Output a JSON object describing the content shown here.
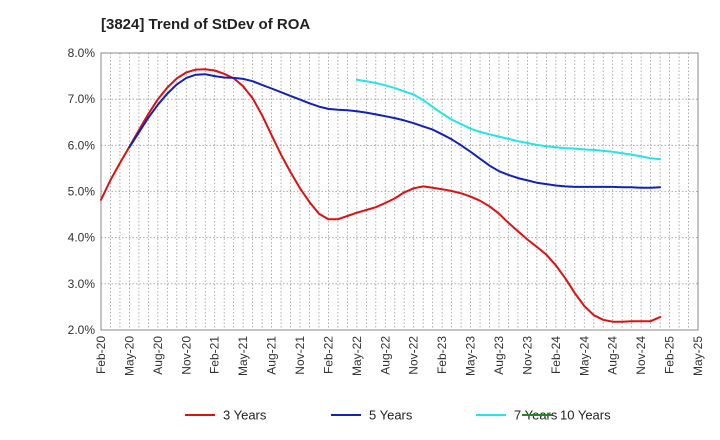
{
  "chart_data": {
    "type": "line",
    "title": "[3824]  Trend of StDev of ROA",
    "xlabel": "",
    "ylabel": "",
    "ylim": [
      2.0,
      8.0
    ],
    "x_ticks": [
      "Feb-20",
      "May-20",
      "Aug-20",
      "Nov-20",
      "Feb-21",
      "May-21",
      "Aug-21",
      "Nov-21",
      "Feb-22",
      "May-22",
      "Aug-22",
      "Nov-22",
      "Feb-23",
      "May-23",
      "Aug-23",
      "Nov-23",
      "Feb-24",
      "May-24",
      "Aug-24",
      "Nov-24",
      "Feb-25",
      "May-25"
    ],
    "y_ticks": [
      "2.0%",
      "3.0%",
      "4.0%",
      "5.0%",
      "6.0%",
      "7.0%",
      "8.0%"
    ],
    "y_tick_values": [
      2.0,
      3.0,
      4.0,
      5.0,
      6.0,
      7.0,
      8.0
    ],
    "grid": true,
    "legend_position": "bottom",
    "series": [
      {
        "name": "3 Years",
        "color": "#dd1111",
        "points": [
          [
            "Feb-20",
            4.82
          ],
          [
            "Mar-20",
            5.25
          ],
          [
            "Apr-20",
            5.62
          ],
          [
            "May-20",
            5.97
          ],
          [
            "Jun-20",
            6.33
          ],
          [
            "Jul-20",
            6.68
          ],
          [
            "Aug-20",
            7.0
          ],
          [
            "Sep-20",
            7.25
          ],
          [
            "Oct-20",
            7.45
          ],
          [
            "Nov-20",
            7.58
          ],
          [
            "Dec-20",
            7.64
          ],
          [
            "Jan-21",
            7.65
          ],
          [
            "Feb-21",
            7.62
          ],
          [
            "Mar-21",
            7.55
          ],
          [
            "Apr-21",
            7.45
          ],
          [
            "May-21",
            7.28
          ],
          [
            "Jun-21",
            7.02
          ],
          [
            "Jul-21",
            6.65
          ],
          [
            "Aug-21",
            6.22
          ],
          [
            "Sep-21",
            5.8
          ],
          [
            "Oct-21",
            5.42
          ],
          [
            "Nov-21",
            5.07
          ],
          [
            "Dec-21",
            4.77
          ],
          [
            "Jan-22",
            4.52
          ],
          [
            "Feb-22",
            4.4
          ],
          [
            "Mar-22",
            4.4
          ],
          [
            "Apr-22",
            4.47
          ],
          [
            "May-22",
            4.54
          ],
          [
            "Jun-22",
            4.6
          ],
          [
            "Jul-22",
            4.66
          ],
          [
            "Aug-22",
            4.75
          ],
          [
            "Sep-22",
            4.85
          ],
          [
            "Oct-22",
            4.98
          ],
          [
            "Nov-22",
            5.07
          ],
          [
            "Dec-22",
            5.11
          ],
          [
            "Jan-23",
            5.08
          ],
          [
            "Feb-23",
            5.05
          ],
          [
            "Mar-23",
            5.01
          ],
          [
            "Apr-23",
            4.96
          ],
          [
            "May-23",
            4.89
          ],
          [
            "Jun-23",
            4.8
          ],
          [
            "Jul-23",
            4.68
          ],
          [
            "Aug-23",
            4.52
          ],
          [
            "Sep-23",
            4.32
          ],
          [
            "Oct-23",
            4.14
          ],
          [
            "Nov-23",
            3.96
          ],
          [
            "Dec-23",
            3.8
          ],
          [
            "Jan-24",
            3.63
          ],
          [
            "Feb-24",
            3.4
          ],
          [
            "Mar-24",
            3.12
          ],
          [
            "Apr-24",
            2.8
          ],
          [
            "May-24",
            2.52
          ],
          [
            "Jun-24",
            2.32
          ],
          [
            "Jul-24",
            2.22
          ],
          [
            "Aug-24",
            2.18
          ],
          [
            "Sep-24",
            2.18
          ],
          [
            "Oct-24",
            2.19
          ],
          [
            "Nov-24",
            2.19
          ],
          [
            "Dec-24",
            2.19
          ],
          [
            "Jan-25",
            2.28
          ]
        ]
      },
      {
        "name": "5 Years",
        "color": "#1122bb",
        "points": [
          [
            "May-20",
            5.96
          ],
          [
            "Jun-20",
            6.28
          ],
          [
            "Jul-20",
            6.6
          ],
          [
            "Aug-20",
            6.88
          ],
          [
            "Sep-20",
            7.12
          ],
          [
            "Oct-20",
            7.32
          ],
          [
            "Nov-20",
            7.46
          ],
          [
            "Dec-20",
            7.53
          ],
          [
            "Jan-21",
            7.54
          ],
          [
            "Feb-21",
            7.5
          ],
          [
            "Mar-21",
            7.47
          ],
          [
            "Apr-21",
            7.46
          ],
          [
            "May-21",
            7.44
          ],
          [
            "Jun-21",
            7.39
          ],
          [
            "Jul-21",
            7.31
          ],
          [
            "Aug-21",
            7.23
          ],
          [
            "Sep-21",
            7.15
          ],
          [
            "Oct-21",
            7.07
          ],
          [
            "Nov-21",
            6.99
          ],
          [
            "Dec-21",
            6.91
          ],
          [
            "Jan-22",
            6.84
          ],
          [
            "Feb-22",
            6.79
          ],
          [
            "Mar-22",
            6.77
          ],
          [
            "Apr-22",
            6.76
          ],
          [
            "May-22",
            6.74
          ],
          [
            "Jun-22",
            6.71
          ],
          [
            "Jul-22",
            6.67
          ],
          [
            "Aug-22",
            6.63
          ],
          [
            "Sep-22",
            6.59
          ],
          [
            "Oct-22",
            6.54
          ],
          [
            "Nov-22",
            6.48
          ],
          [
            "Dec-22",
            6.41
          ],
          [
            "Jan-23",
            6.34
          ],
          [
            "Feb-23",
            6.24
          ],
          [
            "Mar-23",
            6.13
          ],
          [
            "Apr-23",
            6.0
          ],
          [
            "May-23",
            5.86
          ],
          [
            "Jun-23",
            5.71
          ],
          [
            "Jul-23",
            5.56
          ],
          [
            "Aug-23",
            5.44
          ],
          [
            "Sep-23",
            5.36
          ],
          [
            "Oct-23",
            5.29
          ],
          [
            "Nov-23",
            5.24
          ],
          [
            "Dec-23",
            5.19
          ],
          [
            "Jan-24",
            5.16
          ],
          [
            "Feb-24",
            5.13
          ],
          [
            "Mar-24",
            5.11
          ],
          [
            "Apr-24",
            5.1
          ],
          [
            "May-24",
            5.1
          ],
          [
            "Jun-24",
            5.1
          ],
          [
            "Jul-24",
            5.1
          ],
          [
            "Aug-24",
            5.1
          ],
          [
            "Sep-24",
            5.09
          ],
          [
            "Oct-24",
            5.09
          ],
          [
            "Nov-24",
            5.08
          ],
          [
            "Dec-24",
            5.08
          ],
          [
            "Jan-25",
            5.09
          ]
        ]
      },
      {
        "name": "7 Years",
        "color": "#22e5e5",
        "points": [
          [
            "May-22",
            7.42
          ],
          [
            "Jun-22",
            7.39
          ],
          [
            "Jul-22",
            7.35
          ],
          [
            "Aug-22",
            7.3
          ],
          [
            "Sep-22",
            7.24
          ],
          [
            "Oct-22",
            7.17
          ],
          [
            "Nov-22",
            7.1
          ],
          [
            "Dec-22",
            6.98
          ],
          [
            "Jan-23",
            6.83
          ],
          [
            "Feb-23",
            6.69
          ],
          [
            "Mar-23",
            6.56
          ],
          [
            "Apr-23",
            6.46
          ],
          [
            "May-23",
            6.36
          ],
          [
            "Jun-23",
            6.29
          ],
          [
            "Jul-23",
            6.24
          ],
          [
            "Aug-23",
            6.19
          ],
          [
            "Sep-23",
            6.14
          ],
          [
            "Oct-23",
            6.09
          ],
          [
            "Nov-23",
            6.05
          ],
          [
            "Dec-23",
            6.01
          ],
          [
            "Jan-24",
            5.98
          ],
          [
            "Feb-24",
            5.96
          ],
          [
            "Mar-24",
            5.94
          ],
          [
            "Apr-24",
            5.93
          ],
          [
            "May-24",
            5.91
          ],
          [
            "Jun-24",
            5.9
          ],
          [
            "Jul-24",
            5.88
          ],
          [
            "Aug-24",
            5.86
          ],
          [
            "Sep-24",
            5.83
          ],
          [
            "Oct-24",
            5.8
          ],
          [
            "Nov-24",
            5.76
          ],
          [
            "Dec-24",
            5.72
          ],
          [
            "Jan-25",
            5.7
          ]
        ]
      },
      {
        "name": "10 Years",
        "color": "#228822",
        "points": []
      }
    ]
  }
}
